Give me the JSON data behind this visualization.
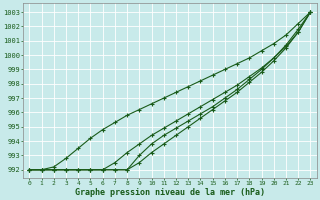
{
  "title": "Graphe pression niveau de la mer (hPa)",
  "bg_color": "#c8eaea",
  "grid_color": "#b8d8d8",
  "line_color": "#1a5c1a",
  "xlim": [
    -0.5,
    23.5
  ],
  "ylim": [
    991.4,
    1003.6
  ],
  "yticks": [
    992,
    993,
    994,
    995,
    996,
    997,
    998,
    999,
    1000,
    1001,
    1002,
    1003
  ],
  "xticks": [
    0,
    1,
    2,
    3,
    4,
    5,
    6,
    7,
    8,
    9,
    10,
    11,
    12,
    13,
    14,
    15,
    16,
    17,
    18,
    19,
    20,
    21,
    22,
    23
  ],
  "line1_x": [
    0,
    1,
    2,
    3,
    4,
    5,
    6,
    7,
    8,
    9,
    10,
    11,
    12,
    13,
    14,
    15,
    16,
    17,
    18,
    19,
    20,
    21,
    22,
    23
  ],
  "line1_y": [
    992,
    992,
    992.2,
    992.8,
    993.5,
    994.2,
    994.8,
    995.3,
    995.8,
    996.2,
    996.6,
    997.0,
    997.4,
    997.8,
    998.2,
    998.6,
    999.0,
    999.4,
    999.8,
    1000.3,
    1000.8,
    1001.4,
    1002.2,
    1003.0
  ],
  "line2_x": [
    0,
    1,
    2,
    3,
    4,
    5,
    6,
    7,
    8,
    9,
    10,
    11,
    12,
    13,
    14,
    15,
    16,
    17,
    18,
    19,
    20,
    21,
    22,
    23
  ],
  "line2_y": [
    992,
    992,
    992,
    992,
    992,
    992,
    992,
    992.5,
    993.2,
    993.8,
    994.4,
    994.9,
    995.4,
    995.9,
    996.4,
    996.9,
    997.4,
    997.9,
    998.5,
    999.1,
    999.8,
    1000.6,
    1001.6,
    1003.0
  ],
  "line3_x": [
    0,
    1,
    2,
    3,
    4,
    5,
    6,
    7,
    8,
    9,
    10,
    11,
    12,
    13,
    14,
    15,
    16,
    17,
    18,
    19,
    20,
    21,
    22,
    23
  ],
  "line3_y": [
    992,
    992,
    992,
    992,
    992,
    992,
    992,
    992,
    992,
    992.5,
    993.2,
    993.8,
    994.4,
    995.0,
    995.6,
    996.2,
    996.8,
    997.4,
    998.1,
    998.8,
    999.6,
    1000.5,
    1001.6,
    1003.0
  ],
  "line4_x": [
    0,
    1,
    2,
    3,
    4,
    5,
    6,
    7,
    8,
    9,
    10,
    11,
    12,
    13,
    14,
    15,
    16,
    17,
    18,
    19,
    20,
    21,
    22,
    23
  ],
  "line4_y": [
    992,
    992,
    992,
    992,
    992,
    992,
    992,
    992,
    992,
    993.0,
    993.8,
    994.4,
    994.9,
    995.4,
    995.9,
    996.4,
    997.0,
    997.6,
    998.3,
    999.0,
    999.8,
    1000.7,
    1001.8,
    1003.0
  ]
}
